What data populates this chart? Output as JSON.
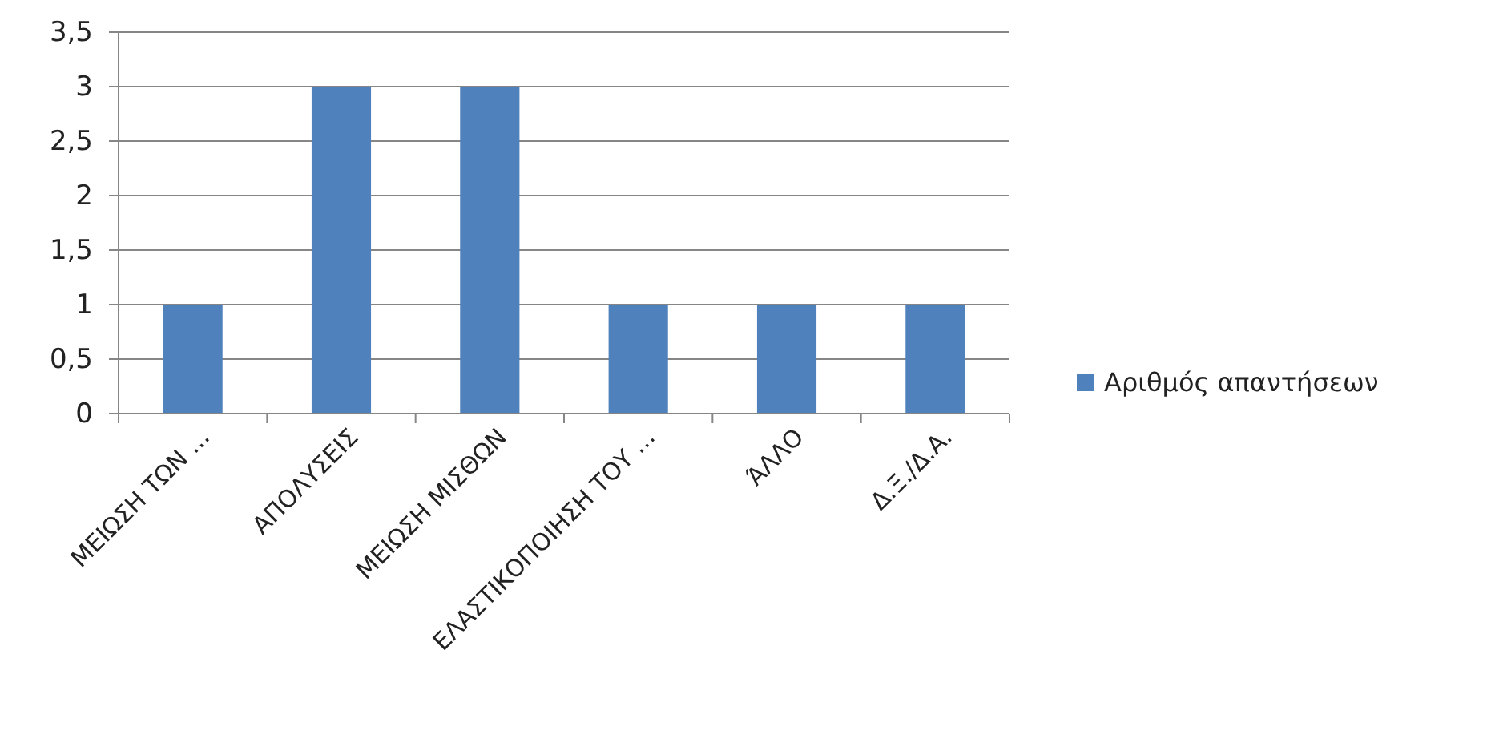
{
  "chart_data": {
    "type": "bar",
    "categories": [
      "ΜΕΙΩΣΗ ΤΩΝ ...",
      "ΑΠΟΛΥΣΕΙΣ",
      "ΜΕΙΩΣΗ ΜΙΣΘΩΝ",
      "ΕΛΑΣΤΙΚΟΠΟΙΗΣΗ ΤΟΥ ...",
      "ΆΛΛΟ",
      "Δ.Ξ./Δ.Α."
    ],
    "series": [
      {
        "name": "Αριθμός απαντήσεων",
        "color": "#4f81bd",
        "values": [
          1,
          3,
          3,
          1,
          1,
          1
        ]
      }
    ],
    "ylim": [
      0,
      3.5
    ],
    "yticks": [
      0,
      {
        "value": 0.5,
        "label": "0,5"
      },
      1,
      {
        "value": 1.5,
        "label": "1,5"
      },
      2,
      {
        "value": 2.5,
        "label": "2,5"
      },
      3,
      {
        "value": 3.5,
        "label": "3,5"
      }
    ],
    "grid": "y",
    "legend": "right"
  }
}
